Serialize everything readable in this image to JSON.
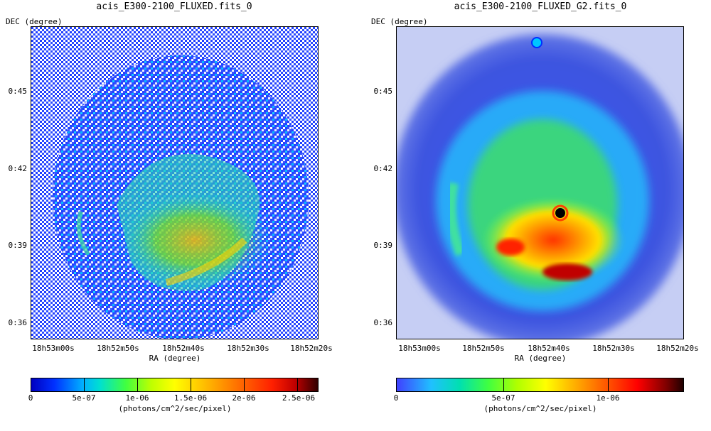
{
  "panels": [
    {
      "title": "acis_E300-2100_FLUXED.fits_0",
      "dec_label": "DEC (degree)",
      "ra_label": "RA (degree)",
      "y_ticks": [
        "0:45",
        "0:42",
        "0:39",
        "0:36"
      ],
      "x_ticks": [
        "18h53m00s",
        "18h52m50s",
        "18h52m40s",
        "18h52m30s",
        "18h52m20s"
      ],
      "colorbar": {
        "ticks": [
          "0",
          "5e-07",
          "1e-06",
          "1.5e-06",
          "2e-06",
          "2.5e-06"
        ],
        "unit": "(photons/cm^2/sec/pixel)"
      }
    },
    {
      "title": "acis_E300-2100_FLUXED_G2.fits_0",
      "dec_label": "DEC (degree)",
      "ra_label": "RA (degree)",
      "y_ticks": [
        "0:45",
        "0:42",
        "0:39",
        "0:36"
      ],
      "x_ticks": [
        "18h53m00s",
        "18h52m50s",
        "18h52m40s",
        "18h52m30s",
        "18h52m20s"
      ],
      "colorbar": {
        "ticks": [
          "0",
          "5e-07",
          "1e-06"
        ],
        "unit": "(photons/cm^2/sec/pixel)"
      }
    }
  ]
}
